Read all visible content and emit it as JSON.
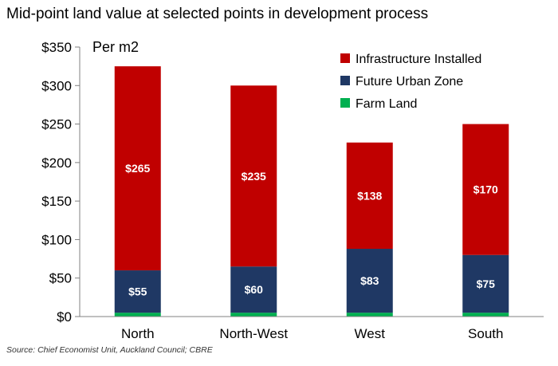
{
  "chart_data": {
    "type": "bar",
    "stacked": true,
    "title": "Mid-point land value at selected points in development process",
    "unit_label": "Per m2",
    "categories": [
      "North",
      "North-West",
      "West",
      "South"
    ],
    "series": [
      {
        "name": "Farm Land",
        "color": "#00b050",
        "values": [
          5,
          5,
          5,
          5
        ],
        "labels": [
          "",
          "",
          "",
          ""
        ]
      },
      {
        "name": "Future Urban Zone",
        "color": "#1f3864",
        "values": [
          55,
          60,
          83,
          75
        ],
        "labels": [
          "$55",
          "$60",
          "$83",
          "$75"
        ]
      },
      {
        "name": "Infrastructure Installed",
        "color": "#c00000",
        "values": [
          265,
          235,
          138,
          170
        ],
        "labels": [
          "$265",
          "$235",
          "$138",
          "$170"
        ]
      }
    ],
    "ylim": [
      0,
      350
    ],
    "yticks": [
      0,
      50,
      100,
      150,
      200,
      250,
      300,
      350
    ],
    "ytick_labels": [
      "$0",
      "$50",
      "$100",
      "$150",
      "$200",
      "$250",
      "$300",
      "$350"
    ],
    "legend_order": [
      "Infrastructure Installed",
      "Future Urban Zone",
      "Farm Land"
    ],
    "legend_position": "top-right",
    "grid": false,
    "source": "Source: Chief Economist Unit, Auckland Council; CBRE"
  }
}
